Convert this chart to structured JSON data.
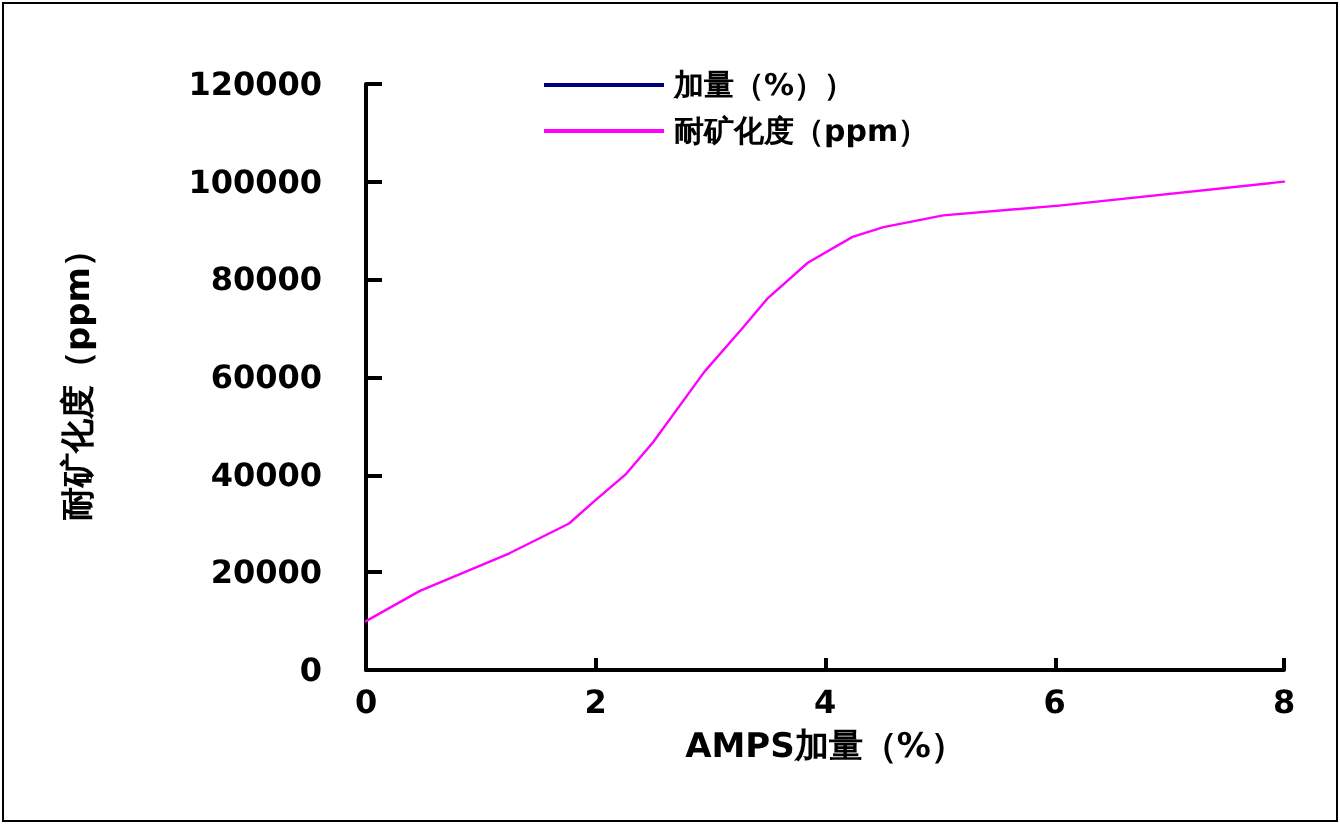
{
  "chart_data": {
    "type": "line",
    "xlabel": "AMPS加量（%）",
    "ylabel": "耐矿化度（ppm）",
    "x": [
      0,
      0.47,
      1.25,
      1.77,
      2.0,
      2.26,
      2.5,
      2.95,
      3.28,
      3.5,
      3.85,
      4.24,
      4.51,
      5.03,
      6.04,
      8
    ],
    "series": [
      {
        "name": "加量（%））",
        "color": "#000080",
        "values": [
          null,
          null,
          null,
          null,
          null,
          null,
          null,
          null,
          null,
          null,
          null,
          null,
          null,
          null,
          null,
          null
        ]
      },
      {
        "name": "耐矿化度（ppm）",
        "color": "#ff00ff",
        "values": [
          10000,
          16200,
          23900,
          30000,
          34800,
          40000,
          46600,
          61100,
          70000,
          76100,
          83400,
          88700,
          90700,
          93100,
          95100,
          100000
        ]
      }
    ],
    "xlim": [
      0,
      8
    ],
    "xticks": [
      0,
      2,
      4,
      6,
      8
    ],
    "ylim": [
      0,
      120000
    ],
    "yticks": [
      0,
      20000,
      40000,
      60000,
      80000,
      100000,
      120000
    ],
    "grid": false,
    "legend": "top",
    "marker": "none",
    "line_style": "solid"
  }
}
